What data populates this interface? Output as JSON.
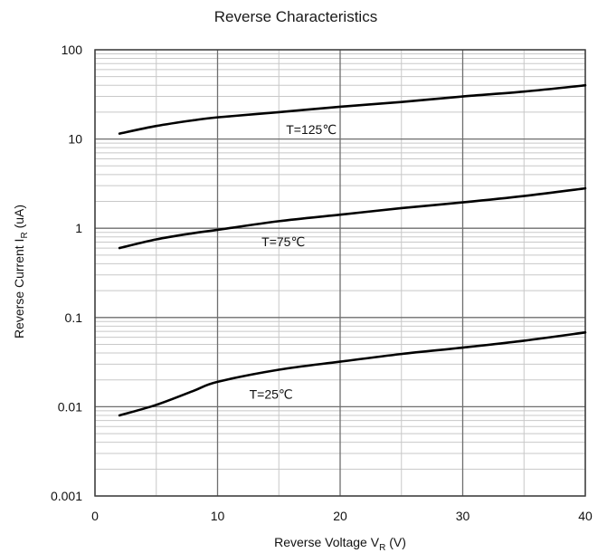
{
  "chart_data": {
    "type": "line",
    "title": "Reverse Characteristics",
    "xlabel": {
      "main": "Reverse Voltage V",
      "sub": "R",
      "suffix": " (V)"
    },
    "ylabel": {
      "main": "Reverse Current I",
      "sub": "R",
      "suffix": " (uA)"
    },
    "x_scale": "linear",
    "y_scale": "log",
    "xlim": [
      0,
      40
    ],
    "ylim": [
      0.001,
      100
    ],
    "x_major_ticks": [
      0,
      10,
      20,
      30,
      40
    ],
    "x_tick_labels": [
      "0",
      "10",
      "20",
      "30",
      "40"
    ],
    "x_minor_step": 5,
    "y_major_ticks": [
      0.001,
      0.01,
      0.1,
      1,
      10,
      100
    ],
    "y_tick_labels": [
      "0.001",
      "0.01",
      "0.1",
      "1",
      "10",
      "100"
    ],
    "grid": true,
    "colors": {
      "line": "#000000",
      "major_grid": "#6e6e6e",
      "minor_grid": "#c8c8c8",
      "frame": "#404040"
    },
    "series": [
      {
        "label": "T=125℃",
        "x": [
          2,
          5,
          8,
          10,
          15,
          20,
          25,
          30,
          35,
          40
        ],
        "y": [
          11.5,
          14,
          16.2,
          17.5,
          20,
          23,
          26,
          30,
          34,
          40
        ]
      },
      {
        "label": "T=75℃",
        "x": [
          2,
          5,
          8,
          10,
          15,
          20,
          25,
          30,
          35,
          40
        ],
        "y": [
          0.6,
          0.75,
          0.88,
          0.96,
          1.2,
          1.42,
          1.68,
          1.95,
          2.3,
          2.8
        ]
      },
      {
        "label": "T=25℃",
        "x": [
          2,
          5,
          8,
          10,
          15,
          20,
          25,
          30,
          35,
          40
        ],
        "y": [
          0.008,
          0.0105,
          0.015,
          0.019,
          0.026,
          0.032,
          0.039,
          0.046,
          0.055,
          0.068
        ]
      }
    ]
  }
}
